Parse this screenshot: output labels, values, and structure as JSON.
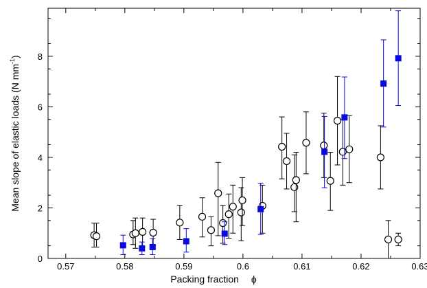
{
  "chart_data": {
    "type": "scatter",
    "xlabel": "Packing fraction",
    "xlabel_symbol": "ϕ",
    "ylabel_main": "Mean slope of elastic loads  (N mm",
    "ylabel_sup": "-1",
    "ylabel_close": ")",
    "xlim": [
      0.567,
      0.63
    ],
    "ylim": [
      0,
      9.9
    ],
    "xticks": [
      0.57,
      0.58,
      0.59,
      0.6,
      0.61,
      0.62,
      0.63
    ],
    "xtick_labels": [
      "0.57",
      "0.58",
      "0.59",
      "0.6",
      "0.61",
      "0.62",
      "0.63"
    ],
    "yticks": [
      0,
      2,
      4,
      6,
      8
    ],
    "ytick_labels": [
      "0",
      "2",
      "4",
      "6",
      "8"
    ],
    "grid": false,
    "series": [
      {
        "marker": "open-circle",
        "color": "#000000",
        "points": [
          {
            "x": 0.5748,
            "y": 0.92,
            "lo": 0.45,
            "hi": 1.4
          },
          {
            "x": 0.5752,
            "y": 0.88,
            "lo": 0.45,
            "hi": 1.4
          },
          {
            "x": 0.5814,
            "y": 0.95,
            "lo": 0.55,
            "hi": 1.5
          },
          {
            "x": 0.5818,
            "y": 1.0,
            "lo": 0.4,
            "hi": 1.6
          },
          {
            "x": 0.583,
            "y": 1.05,
            "lo": 0.45,
            "hi": 1.6
          },
          {
            "x": 0.5848,
            "y": 1.02,
            "lo": 0.5,
            "hi": 1.55
          },
          {
            "x": 0.5893,
            "y": 1.42,
            "lo": 0.75,
            "hi": 2.1
          },
          {
            "x": 0.5931,
            "y": 1.65,
            "lo": 0.85,
            "hi": 2.4
          },
          {
            "x": 0.5946,
            "y": 1.12,
            "lo": 0.5,
            "hi": 1.65
          },
          {
            "x": 0.5958,
            "y": 2.58,
            "lo": 0.9,
            "hi": 3.8
          },
          {
            "x": 0.5966,
            "y": 1.4,
            "lo": 0.6,
            "hi": 2.1
          },
          {
            "x": 0.5976,
            "y": 1.75,
            "lo": 0.8,
            "hi": 2.55
          },
          {
            "x": 0.5983,
            "y": 2.05,
            "lo": 1.0,
            "hi": 2.9
          },
          {
            "x": 0.5997,
            "y": 1.82,
            "lo": 0.7,
            "hi": 2.8
          },
          {
            "x": 0.5999,
            "y": 2.3,
            "lo": 1.3,
            "hi": 3.2
          },
          {
            "x": 0.6033,
            "y": 2.08,
            "lo": 1.0,
            "hi": 2.9
          },
          {
            "x": 0.6066,
            "y": 4.42,
            "lo": 3.15,
            "hi": 5.6
          },
          {
            "x": 0.6074,
            "y": 3.85,
            "lo": 2.75,
            "hi": 4.95
          },
          {
            "x": 0.6087,
            "y": 2.82,
            "lo": 1.85,
            "hi": 4.1
          },
          {
            "x": 0.609,
            "y": 3.1,
            "lo": 1.45,
            "hi": 4.2
          },
          {
            "x": 0.6107,
            "y": 4.58,
            "lo": 3.35,
            "hi": 5.8
          },
          {
            "x": 0.6137,
            "y": 4.47,
            "lo": 3.2,
            "hi": 5.75
          },
          {
            "x": 0.6148,
            "y": 3.07,
            "lo": 1.9,
            "hi": 4.2
          },
          {
            "x": 0.616,
            "y": 5.45,
            "lo": 3.7,
            "hi": 7.2
          },
          {
            "x": 0.6169,
            "y": 4.22,
            "lo": 2.9,
            "hi": 5.5
          },
          {
            "x": 0.618,
            "y": 4.32,
            "lo": 3.0,
            "hi": 5.65
          },
          {
            "x": 0.6233,
            "y": 4.0,
            "lo": 2.75,
            "hi": 5.25
          },
          {
            "x": 0.6246,
            "y": 0.75,
            "lo": 0.0,
            "hi": 1.5
          },
          {
            "x": 0.6263,
            "y": 0.75,
            "lo": 0.5,
            "hi": 1.0
          }
        ]
      },
      {
        "marker": "filled-square",
        "color": "#0a0adc",
        "points": [
          {
            "x": 0.5797,
            "y": 0.52,
            "lo": 0.15,
            "hi": 0.92
          },
          {
            "x": 0.5829,
            "y": 0.4,
            "lo": 0.15,
            "hi": 0.65
          },
          {
            "x": 0.5847,
            "y": 0.45,
            "lo": 0.15,
            "hi": 0.78
          },
          {
            "x": 0.5904,
            "y": 0.68,
            "lo": 0.25,
            "hi": 1.18
          },
          {
            "x": 0.5969,
            "y": 0.98,
            "lo": 0.55,
            "hi": 1.45
          },
          {
            "x": 0.603,
            "y": 1.95,
            "lo": 0.95,
            "hi": 2.98
          },
          {
            "x": 0.6138,
            "y": 4.22,
            "lo": 2.8,
            "hi": 5.62
          },
          {
            "x": 0.6172,
            "y": 5.58,
            "lo": 3.95,
            "hi": 7.18
          },
          {
            "x": 0.6238,
            "y": 6.92,
            "lo": 5.2,
            "hi": 8.65
          },
          {
            "x": 0.6263,
            "y": 7.92,
            "lo": 6.05,
            "hi": 9.8
          }
        ]
      }
    ]
  }
}
